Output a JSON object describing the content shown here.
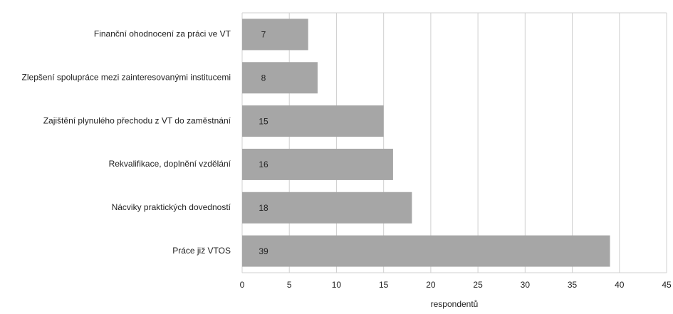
{
  "chart_data": {
    "type": "bar",
    "orientation": "horizontal",
    "categories": [
      "Finanční ohodnocení za práci ve VT",
      "Zlepšení spolupráce mezi zainteresovanými institucemi",
      "Zajištění plynulého přechodu z VT do zaměstnání",
      "Rekvalifikace, doplnění vzdělání",
      "Nácviky praktických dovedností",
      "Práce již VTOS"
    ],
    "values": [
      7,
      8,
      15,
      16,
      18,
      39
    ],
    "color": "#a6a6a6",
    "xlabel": "respondentů",
    "xlim": [
      0,
      45
    ],
    "xticks": [
      0,
      5,
      10,
      15,
      20,
      25,
      30,
      35,
      40,
      45
    ],
    "grid": true
  }
}
